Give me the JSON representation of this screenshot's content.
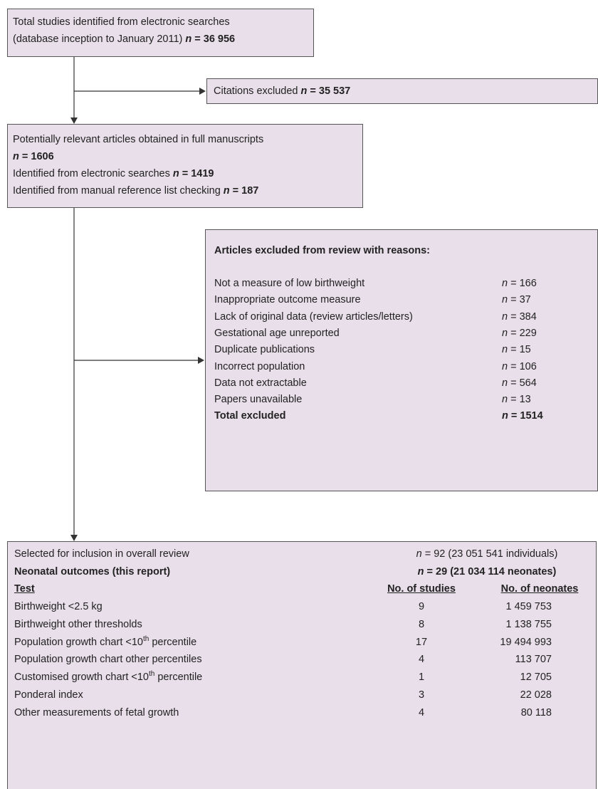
{
  "search": {
    "lines": [
      [
        {
          "text": "Total studies identified from electronic searches"
        }
      ],
      [
        {
          "text": "(database inception to January 2011) "
        },
        {
          "text": "n",
          "style": "bold-italic"
        },
        {
          "text": " = 36 956",
          "style": "bold"
        }
      ]
    ]
  },
  "citations_excluded": {
    "lines": [
      [
        {
          "text": "Citations excluded "
        },
        {
          "text": "n",
          "style": "bold-italic"
        },
        {
          "text": " = 35 537",
          "style": "bold"
        }
      ]
    ]
  },
  "full_manuscripts": {
    "lines": [
      [
        {
          "text": "Potentially relevant articles obtained in full manuscripts"
        }
      ],
      [
        {
          "text": "n",
          "style": "bold-italic"
        },
        {
          "text": " = 1606",
          "style": "bold"
        }
      ],
      [
        {
          "text": "Identified from electronic searches "
        },
        {
          "text": "n",
          "style": "bold-italic"
        },
        {
          "text": " = 1419",
          "style": "bold"
        }
      ],
      [
        {
          "text": "Identified from manual reference list checking "
        },
        {
          "text": "n",
          "style": "bold-italic"
        },
        {
          "text": " = 187",
          "style": "bold"
        }
      ]
    ]
  },
  "exclusions": {
    "title": "Articles excluded from review with reasons:",
    "rows": [
      {
        "reason": [
          {
            "text": "Not a measure of low birthweight"
          }
        ],
        "count": [
          {
            "text": "n",
            "style": "italic"
          },
          {
            "text": " = 166"
          }
        ]
      },
      {
        "reason": [
          {
            "text": "Inappropriate outcome measure"
          }
        ],
        "count": [
          {
            "text": "n",
            "style": "italic"
          },
          {
            "text": " = 37"
          }
        ]
      },
      {
        "reason": [
          {
            "text": "Lack of original data (review articles/letters)"
          }
        ],
        "count": [
          {
            "text": "n",
            "style": "italic"
          },
          {
            "text": " = 384"
          }
        ]
      },
      {
        "reason": [
          {
            "text": "Gestational age unreported"
          }
        ],
        "count": [
          {
            "text": "n",
            "style": "italic"
          },
          {
            "text": " = 229"
          }
        ]
      },
      {
        "reason": [
          {
            "text": "Duplicate publications"
          }
        ],
        "count": [
          {
            "text": "n",
            "style": "italic"
          },
          {
            "text": " = 15"
          }
        ]
      },
      {
        "reason": [
          {
            "text": "Incorrect population"
          }
        ],
        "count": [
          {
            "text": "n",
            "style": "italic"
          },
          {
            "text": " = 106"
          }
        ]
      },
      {
        "reason": [
          {
            "text": "Data not extractable"
          }
        ],
        "count": [
          {
            "text": "n",
            "style": "italic"
          },
          {
            "text": " = 564"
          }
        ]
      },
      {
        "reason": [
          {
            "text": "Papers unavailable"
          }
        ],
        "count": [
          {
            "text": "n",
            "style": "italic"
          },
          {
            "text": " = 13"
          }
        ]
      },
      {
        "reason": [
          {
            "text": "Total excluded",
            "style": "bold"
          }
        ],
        "count": [
          {
            "text": "n",
            "style": "bold-italic"
          },
          {
            "text": " = 1514",
            "style": "bold"
          }
        ]
      }
    ]
  },
  "included": {
    "summary": [
      {
        "label": [
          {
            "text": "Selected for inclusion in overall review"
          }
        ],
        "value": [
          {
            "text": "n",
            "style": "italic"
          },
          {
            "text": " = 92 (23 051 541 individuals)"
          }
        ]
      },
      {
        "label": [
          {
            "text": "Neonatal outcomes (this report)",
            "style": "bold"
          }
        ],
        "value": [
          {
            "text": "n",
            "style": "bold-italic"
          },
          {
            "text": " = 29 (21 034 114 neonates)",
            "style": "bold"
          }
        ]
      }
    ],
    "columns": [
      "Test",
      "No. of studies",
      "No. of neonates"
    ],
    "rows": [
      {
        "test": [
          {
            "text": "Birthweight <2.5 kg"
          }
        ],
        "studies": "9",
        "neonates": "1 459 753"
      },
      {
        "test": [
          {
            "text": "Birthweight other thresholds"
          }
        ],
        "studies": "8",
        "neonates": "1 138 755"
      },
      {
        "test": [
          {
            "text": "Population growth chart <10"
          },
          {
            "text": "th",
            "style": "sup"
          },
          {
            "text": " percentile"
          }
        ],
        "studies": "17",
        "neonates": "19 494 993"
      },
      {
        "test": [
          {
            "text": "Population growth chart other percentiles"
          }
        ],
        "studies": "4",
        "neonates": "113 707"
      },
      {
        "test": [
          {
            "text": "Customised growth chart <10"
          },
          {
            "text": "th",
            "style": "sup"
          },
          {
            "text": " percentile"
          }
        ],
        "studies": "1",
        "neonates": "12 705"
      },
      {
        "test": [
          {
            "text": "Ponderal index"
          }
        ],
        "studies": "3",
        "neonates": "22 028"
      },
      {
        "test": [
          {
            "text": "Other measurements of fetal growth"
          }
        ],
        "studies": "4",
        "neonates": "80 118"
      }
    ]
  }
}
